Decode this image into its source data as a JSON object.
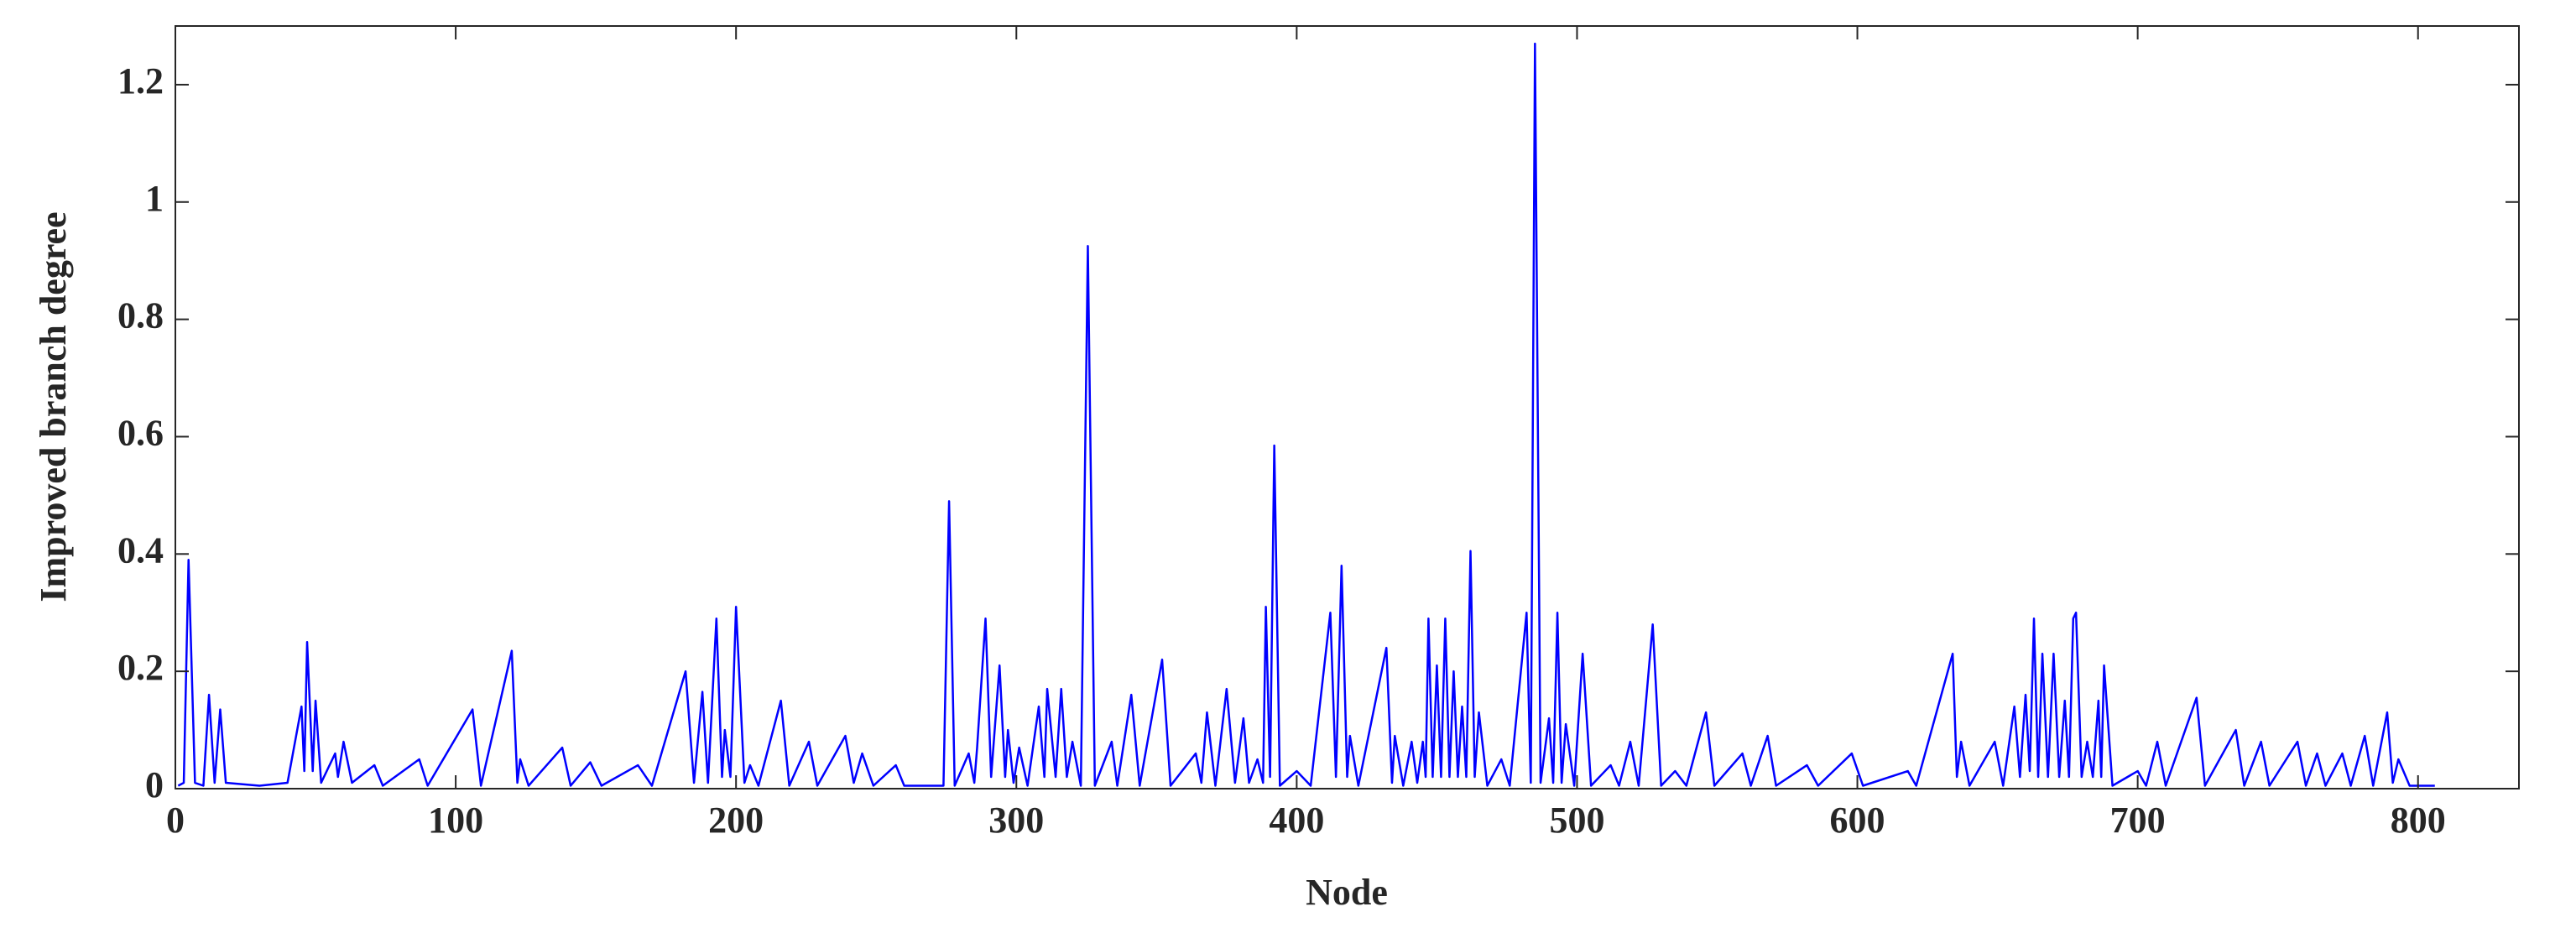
{
  "chart_data": {
    "type": "line",
    "xlabel": "Node",
    "ylabel": "Improved branch degree",
    "xlim": [
      0,
      836
    ],
    "ylim": [
      0,
      1.3
    ],
    "xticks": [
      0,
      100,
      200,
      300,
      400,
      500,
      600,
      700,
      800
    ],
    "yticks": [
      0,
      0.2,
      0.4,
      0.6,
      0.8,
      1,
      1.2
    ],
    "grid": false,
    "series": [
      {
        "color": "#0000ff",
        "x": [
          1,
          3,
          4.7,
          7,
          10,
          12,
          14,
          16,
          18,
          30,
          40,
          45,
          46,
          47,
          49,
          50,
          52,
          57,
          58,
          60,
          63,
          71,
          74,
          87,
          90,
          106,
          109,
          120,
          122,
          123,
          126,
          138,
          141,
          148,
          152,
          165,
          170,
          182,
          185,
          188,
          190,
          193,
          195,
          196,
          198,
          200,
          203,
          205,
          208,
          216,
          219,
          226,
          229,
          239,
          242,
          245,
          249,
          257,
          260,
          274,
          276,
          278,
          283,
          285,
          286,
          289,
          291,
          294,
          296,
          297,
          299,
          301,
          304,
          308,
          310,
          311,
          314,
          316,
          318,
          320,
          323,
          325.5,
          328,
          334,
          336,
          341,
          344,
          352,
          355,
          364,
          366,
          368,
          371,
          375,
          378,
          381,
          383,
          386,
          388,
          389,
          390.5,
          392,
          394,
          400,
          405,
          412,
          414,
          416,
          418,
          419,
          422,
          432,
          434,
          435,
          438,
          441,
          443,
          445,
          446,
          447,
          448.5,
          450,
          451.5,
          453,
          454.5,
          456,
          457.5,
          459,
          460.5,
          462,
          463.5,
          465,
          468,
          473,
          476,
          482,
          483.5,
          485,
          487,
          490,
          491.5,
          493,
          494.5,
          496,
          499,
          502,
          505,
          512,
          515,
          519,
          522,
          527,
          530,
          535,
          539,
          546,
          549,
          559,
          562,
          568,
          571,
          582,
          586,
          598,
          602,
          618,
          621,
          634,
          635.5,
          637,
          640,
          649,
          652,
          656,
          658,
          660,
          661.5,
          663,
          664.5,
          666,
          668,
          670,
          672,
          674,
          675.5,
          677,
          678,
          680,
          682,
          684,
          686,
          687,
          688,
          691,
          700,
          703,
          707,
          710,
          721,
          724,
          735,
          738,
          744,
          747,
          757,
          760,
          764,
          767,
          773,
          776,
          781,
          784,
          789,
          791,
          793,
          797,
          806
        ],
        "values": [
          0.005,
          0.01,
          0.39,
          0.01,
          0.005,
          0.16,
          0.01,
          0.135,
          0.01,
          0.005,
          0.01,
          0.14,
          0.03,
          0.25,
          0.03,
          0.15,
          0.01,
          0.06,
          0.02,
          0.08,
          0.01,
          0.04,
          0.005,
          0.05,
          0.005,
          0.135,
          0.005,
          0.235,
          0.01,
          0.05,
          0.005,
          0.07,
          0.005,
          0.045,
          0.005,
          0.04,
          0.005,
          0.2,
          0.01,
          0.165,
          0.01,
          0.29,
          0.02,
          0.1,
          0.02,
          0.31,
          0.01,
          0.04,
          0.005,
          0.15,
          0.005,
          0.08,
          0.005,
          0.09,
          0.01,
          0.06,
          0.005,
          0.04,
          0.005,
          0.005,
          0.49,
          0.005,
          0.06,
          0.01,
          0.07,
          0.29,
          0.02,
          0.21,
          0.02,
          0.1,
          0.01,
          0.07,
          0.005,
          0.14,
          0.02,
          0.17,
          0.02,
          0.17,
          0.02,
          0.08,
          0.005,
          0.925,
          0.005,
          0.08,
          0.005,
          0.16,
          0.005,
          0.22,
          0.005,
          0.06,
          0.01,
          0.13,
          0.005,
          0.17,
          0.01,
          0.12,
          0.01,
          0.05,
          0.01,
          0.31,
          0.02,
          0.585,
          0.005,
          0.03,
          0.005,
          0.3,
          0.02,
          0.38,
          0.02,
          0.09,
          0.005,
          0.24,
          0.01,
          0.09,
          0.005,
          0.08,
          0.01,
          0.08,
          0.02,
          0.29,
          0.02,
          0.21,
          0.02,
          0.29,
          0.02,
          0.2,
          0.02,
          0.14,
          0.02,
          0.405,
          0.02,
          0.13,
          0.005,
          0.05,
          0.005,
          0.3,
          0.01,
          1.27,
          0.01,
          0.12,
          0.01,
          0.3,
          0.01,
          0.11,
          0.005,
          0.23,
          0.005,
          0.04,
          0.005,
          0.08,
          0.005,
          0.28,
          0.005,
          0.03,
          0.005,
          0.13,
          0.005,
          0.06,
          0.005,
          0.09,
          0.005,
          0.04,
          0.005,
          0.06,
          0.005,
          0.03,
          0.005,
          0.23,
          0.02,
          0.08,
          0.005,
          0.08,
          0.005,
          0.14,
          0.02,
          0.16,
          0.03,
          0.29,
          0.02,
          0.23,
          0.02,
          0.23,
          0.02,
          0.15,
          0.02,
          0.29,
          0.3,
          0.02,
          0.08,
          0.02,
          0.15,
          0.02,
          0.21,
          0.005,
          0.03,
          0.005,
          0.08,
          0.005,
          0.155,
          0.005,
          0.1,
          0.005,
          0.08,
          0.005,
          0.08,
          0.005,
          0.06,
          0.005,
          0.06,
          0.005,
          0.09,
          0.005,
          0.13,
          0.01,
          0.05,
          0.005,
          0.005
        ]
      }
    ]
  }
}
